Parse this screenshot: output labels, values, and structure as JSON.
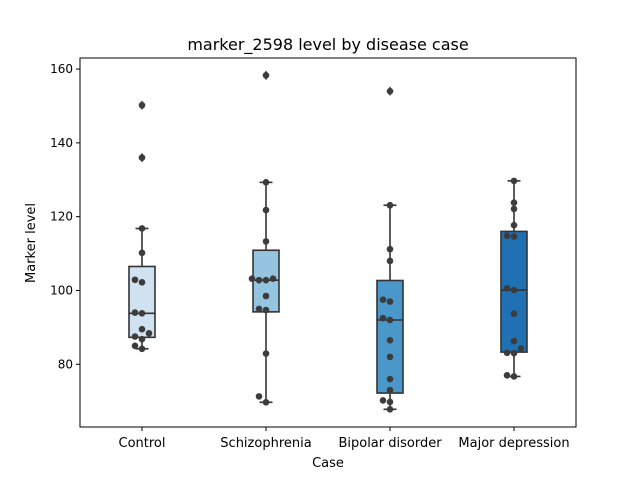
{
  "chart_data": {
    "type": "box",
    "title": "marker_2598 level by disease case",
    "xlabel": "Case",
    "ylabel": "Marker level",
    "categories": [
      "Control",
      "Schizophrenia",
      "Bipolar disorder",
      "Major depression"
    ],
    "ylim": [
      63,
      163
    ],
    "yticks": [
      80,
      100,
      120,
      140,
      160
    ],
    "ytick_labels": [
      "80",
      "100",
      "120",
      "140",
      "160"
    ],
    "grid": false,
    "colors": [
      "#d0e1f2",
      "#94c4df",
      "#4a98c9",
      "#2070b4"
    ],
    "point_color": "#3c3c3c",
    "line_color": "#333333",
    "series": [
      {
        "category": "Control",
        "q1": 87.3,
        "median": 93.8,
        "q3": 106.5,
        "whisker_low": 84.2,
        "whisker_high": 116.8,
        "outliers": [
          136.0,
          150.2
        ],
        "points": [
          84.2,
          85.0,
          86.8,
          87.5,
          88.4,
          89.5,
          93.8,
          94.0,
          102.2,
          102.9,
          110.2,
          116.8,
          136.0,
          150.2
        ]
      },
      {
        "category": "Schizophrenia",
        "q1": 94.2,
        "median": 102.8,
        "q3": 110.9,
        "whisker_low": 69.7,
        "whisker_high": 129.3,
        "outliers": [
          158.3
        ],
        "points": [
          69.7,
          71.3,
          82.9,
          94.7,
          95.0,
          98.5,
          102.8,
          102.8,
          103.2,
          103.2,
          113.3,
          121.8,
          129.3,
          158.3
        ]
      },
      {
        "category": "Bipolar disorder",
        "q1": 72.2,
        "median": 92.0,
        "q3": 102.7,
        "whisker_low": 67.8,
        "whisker_high": 123.1,
        "outliers": [
          154.0
        ],
        "points": [
          67.8,
          69.8,
          70.2,
          73.0,
          76.0,
          82.0,
          86.5,
          92.0,
          92.5,
          97.0,
          97.5,
          108.0,
          111.2,
          123.1,
          154.0
        ]
      },
      {
        "category": "Major depression",
        "q1": 83.3,
        "median": 100.1,
        "q3": 116.0,
        "whisker_low": 76.7,
        "whisker_high": 129.7,
        "outliers": [],
        "points": [
          76.7,
          77.0,
          83.0,
          83.1,
          84.3,
          86.3,
          93.7,
          100.1,
          100.6,
          114.6,
          114.8,
          117.7,
          122.1,
          123.8,
          129.7
        ]
      }
    ]
  }
}
